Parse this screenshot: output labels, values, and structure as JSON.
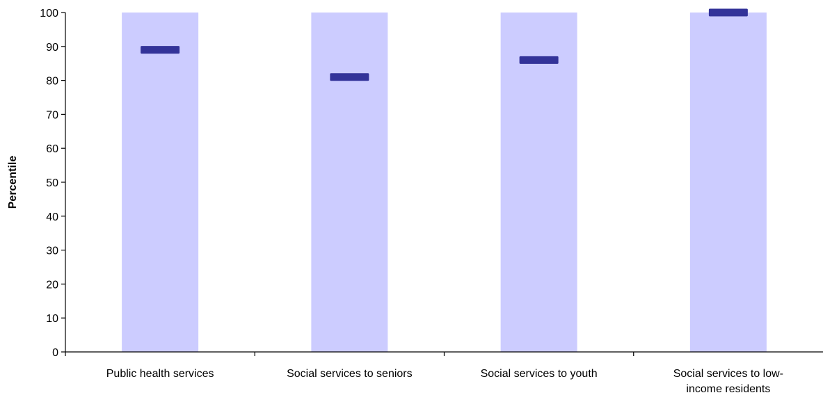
{
  "chart_data": {
    "type": "bar",
    "title": "",
    "xlabel": "",
    "ylabel": "Percentile",
    "ylim": [
      0,
      100
    ],
    "yticks": [
      0,
      10,
      20,
      30,
      40,
      50,
      60,
      70,
      80,
      90,
      100
    ],
    "categories": [
      [
        "Public health services"
      ],
      [
        "Social services to seniors"
      ],
      [
        "Social services to youth"
      ],
      [
        "Social services to low-",
        "income residents"
      ]
    ],
    "series": [
      {
        "values": [
          100,
          100,
          100,
          100
        ],
        "color": "#ccccff"
      },
      {
        "values": [
          89,
          81,
          86,
          100
        ],
        "color": "#333399"
      }
    ],
    "grid": false,
    "legend": "none"
  }
}
